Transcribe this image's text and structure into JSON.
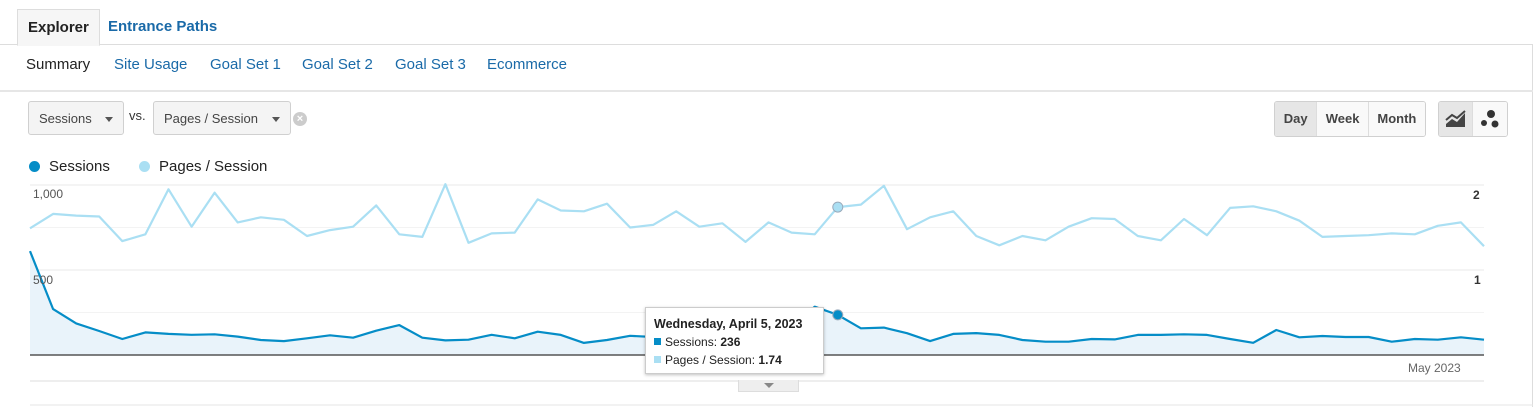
{
  "tabs": [
    {
      "label": "Explorer",
      "active": true
    },
    {
      "label": "Entrance Paths",
      "active": false
    }
  ],
  "subnav": [
    {
      "label": "Summary",
      "active": true
    },
    {
      "label": "Site Usage"
    },
    {
      "label": "Goal Set 1"
    },
    {
      "label": "Goal Set 2"
    },
    {
      "label": "Goal Set 3"
    },
    {
      "label": "Ecommerce"
    }
  ],
  "controls": {
    "metric1": "Sessions",
    "vs_label": "vs.",
    "metric2": "Pages / Session",
    "clear_icon": "close-circle-icon",
    "granularity": [
      {
        "label": "Day",
        "active": true
      },
      {
        "label": "Week"
      },
      {
        "label": "Month"
      }
    ],
    "chart_types": [
      {
        "icon": "line-chart-icon",
        "active": true
      },
      {
        "icon": "motion-chart-icon"
      }
    ]
  },
  "legend": [
    {
      "name": "Sessions",
      "color": "#058dc7"
    },
    {
      "name": "Pages / Session",
      "color": "#aadff3"
    }
  ],
  "tooltip": {
    "title": "Wednesday, April 5, 2023",
    "s_label": "Sessions:",
    "s_value": "236",
    "p_label": "Pages / Session:",
    "p_value": "1.74"
  },
  "chart_data": {
    "type": "line",
    "x_start": "2023-03-01",
    "x_end": "2023-05-03",
    "x_interval": "day",
    "x_tick_labels": [
      {
        "date": "2023-05-01",
        "label": "May 2023"
      }
    ],
    "left_axis": {
      "ticks": [
        "1,000",
        "500"
      ],
      "range": [
        0,
        1000
      ]
    },
    "right_axis": {
      "ticks": [
        "2",
        "1"
      ],
      "range": [
        0,
        2
      ]
    },
    "grid": true,
    "highlight_date": "2023-04-05",
    "series": [
      {
        "name": "Sessions",
        "axis": "left",
        "color": "#058dc7",
        "area": true,
        "values": [
          611,
          270,
          186,
          141,
          94,
          133,
          124,
          119,
          122,
          108,
          88,
          82,
          98,
          116,
          102,
          143,
          176,
          102,
          86,
          90,
          119,
          98,
          137,
          118,
          71,
          88,
          113,
          106,
          112,
          118,
          108,
          120,
          130,
          160,
          284,
          236,
          157,
          161,
          128,
          82,
          124,
          129,
          118,
          88,
          78,
          78,
          94,
          92,
          118,
          118,
          122,
          118,
          94,
          72,
          147,
          104,
          112,
          106,
          106,
          78,
          94,
          90,
          104,
          90
        ]
      },
      {
        "name": "Pages / Session",
        "axis": "right",
        "color": "#aadff3",
        "area": false,
        "values": [
          1.49,
          1.66,
          1.64,
          1.63,
          1.34,
          1.42,
          1.95,
          1.51,
          1.91,
          1.56,
          1.62,
          1.59,
          1.4,
          1.47,
          1.51,
          1.76,
          1.42,
          1.39,
          2.01,
          1.32,
          1.43,
          1.44,
          1.83,
          1.7,
          1.69,
          1.78,
          1.5,
          1.53,
          1.69,
          1.51,
          1.55,
          1.33,
          1.56,
          1.44,
          1.42,
          1.74,
          1.77,
          1.99,
          1.48,
          1.62,
          1.69,
          1.4,
          1.29,
          1.4,
          1.35,
          1.51,
          1.61,
          1.6,
          1.4,
          1.35,
          1.6,
          1.41,
          1.73,
          1.75,
          1.69,
          1.58,
          1.39,
          1.4,
          1.41,
          1.43,
          1.42,
          1.52,
          1.56,
          1.28
        ]
      }
    ]
  }
}
